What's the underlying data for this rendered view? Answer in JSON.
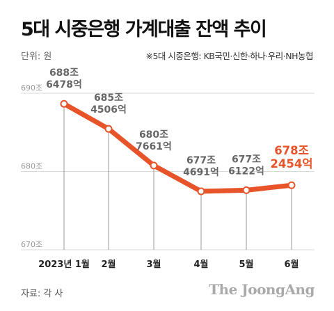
{
  "header": {
    "title": "5대 시중은행 가계대출 잔액 추이",
    "unit": "단위: 원",
    "note": "※5대 시중은행: KB국민·신한·하나·우리·NH농협"
  },
  "footer": {
    "source": "자료: 각 사",
    "brand": "The JoongAng"
  },
  "chart_data": {
    "type": "line",
    "title": "5대 시중은행 가계대출 잔액 추이",
    "categories": [
      "2023년 1월",
      "2월",
      "3월",
      "4월",
      "5월",
      "6월"
    ],
    "series": [
      {
        "values": [
          688.6478,
          685.4506,
          680.7661,
          677.4691,
          677.6122,
          678.2454
        ]
      }
    ],
    "data_labels": [
      [
        "688조",
        "6478억"
      ],
      [
        "685조",
        "4506억"
      ],
      [
        "680조",
        "7661억"
      ],
      [
        "677조",
        "4691억"
      ],
      [
        "677조",
        "6122억"
      ],
      [
        "678조",
        "2454억"
      ]
    ],
    "highlight_index": 5,
    "y_ticks": [
      {
        "value": 690,
        "label": "690조"
      },
      {
        "value": 680,
        "label": "680조"
      },
      {
        "value": 670,
        "label": "670조"
      }
    ],
    "ylim": [
      670,
      690
    ],
    "line_color": "#e8542a",
    "grid_color": "#d9d9d9",
    "drop_line_color": "#9a9a9a"
  }
}
